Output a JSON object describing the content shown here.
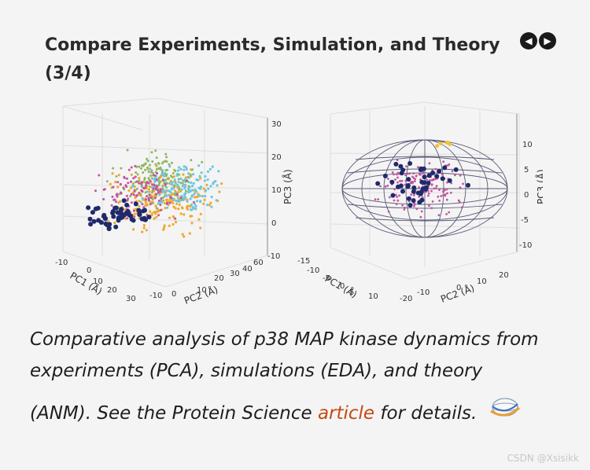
{
  "header": {
    "title": "Compare Experiments, Simulation, and Theory (3/4)",
    "prev_icon": "arrow-left-circle-icon",
    "next_icon": "arrow-right-circle-icon"
  },
  "left_plot": {
    "x_label": "PC1 (Å)",
    "y_label": "PC2 (Å)",
    "z_label": "PC3 (Å)",
    "x_ticks": [
      "-10",
      "0",
      "10",
      "20",
      "30"
    ],
    "y_ticks": [
      "-10",
      "0",
      "10",
      "20",
      "30",
      "40",
      "60"
    ],
    "z_ticks": [
      "30",
      "20",
      "10",
      "0",
      "-10"
    ]
  },
  "right_plot": {
    "x_label": "PC1 (Å)",
    "y_label": "PC2 (Å)",
    "z_label": "PC3 (Å)",
    "x_ticks": [
      "-15",
      "-10",
      "-5",
      "0",
      "5",
      "10"
    ],
    "y_ticks": [
      "-20",
      "-10",
      "0",
      "10",
      "20"
    ],
    "z_ticks": [
      "10",
      "5",
      "0",
      "-5",
      "-10"
    ]
  },
  "caption": {
    "line1": "Comparative analysis of p38 MAP kinase dynamics from",
    "line2": "experiments (PCA), simulations (EDA), and theory",
    "line3_before": "(ANM). See the Protein Science ",
    "link_text": "article",
    "line3_after": " for details."
  },
  "colors": {
    "link": "#c44a14",
    "navy": "#1f2a6b",
    "orange": "#f0a830",
    "cyan": "#6cc7e0",
    "magenta": "#c2559e",
    "green": "#8cb860"
  },
  "watermark": "CSDN @Xsisikk"
}
